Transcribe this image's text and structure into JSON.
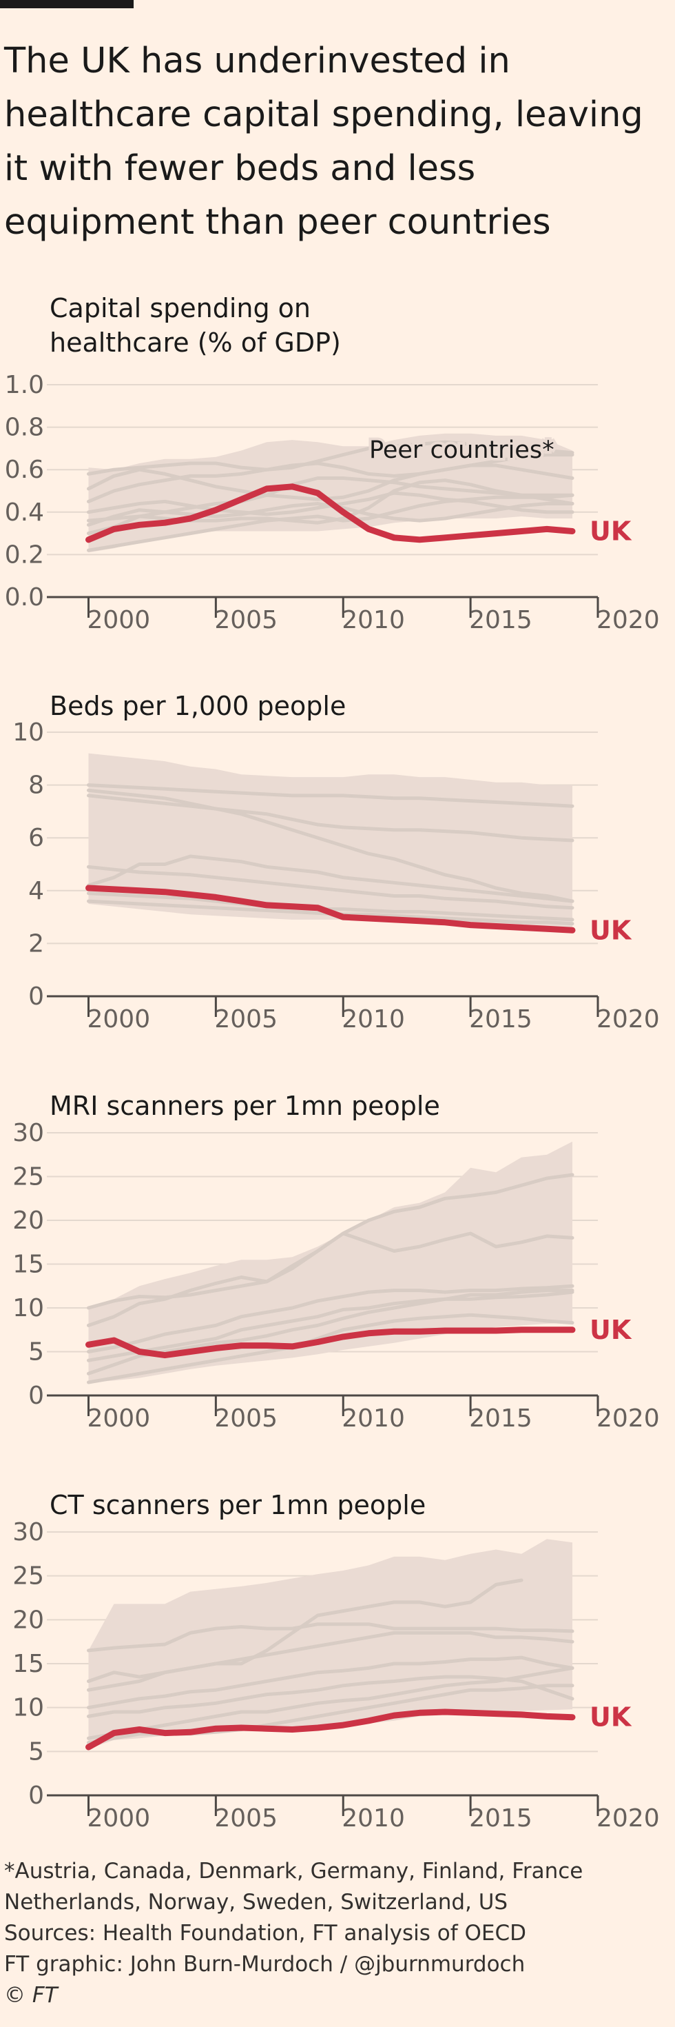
{
  "headline": "The UK has underinvested in healthcare capital spending, leaving it with fewer beds and less equipment than peer countries",
  "colors": {
    "background": "#fff1e5",
    "uk": "#cc3345",
    "peer_line": "#d8ccc4",
    "peer_band": "#eadbd3",
    "axis": "#4d4845"
  },
  "chart_data": [
    {
      "type": "line",
      "title": "Capital spending on\nhealthcare (% of GDP)",
      "yticks": [
        "0.0",
        "0.2",
        "0.4",
        "0.6",
        "0.8",
        "1.0"
      ],
      "ylim": [
        0,
        1.0
      ],
      "xticks": [
        "2000",
        "2005",
        "2010",
        "2015",
        "2020"
      ],
      "xlim": [
        1999.5,
        2020
      ],
      "annotation": "Peer countries*",
      "uk_label": "UK",
      "x": [
        2000,
        2001,
        2002,
        2003,
        2004,
        2005,
        2006,
        2007,
        2008,
        2009,
        2010,
        2011,
        2012,
        2013,
        2014,
        2015,
        2016,
        2017,
        2018,
        2019
      ],
      "band_upper": [
        0.61,
        0.6,
        0.63,
        0.65,
        0.65,
        0.66,
        0.69,
        0.73,
        0.74,
        0.73,
        0.71,
        0.71,
        0.74,
        0.76,
        0.77,
        0.77,
        0.76,
        0.76,
        0.74,
        0.69
      ],
      "band_lower": [
        0.21,
        0.23,
        0.26,
        0.28,
        0.3,
        0.31,
        0.31,
        0.31,
        0.31,
        0.31,
        0.32,
        0.33,
        0.35,
        0.36,
        0.37,
        0.37,
        0.37,
        0.38,
        0.37,
        0.37
      ],
      "uk_values": [
        0.27,
        0.32,
        0.34,
        0.35,
        0.37,
        0.41,
        0.46,
        0.51,
        0.52,
        0.49,
        0.4,
        0.32,
        0.28,
        0.27,
        0.28,
        0.29,
        0.3,
        0.31,
        0.32,
        0.31
      ],
      "peers": [
        [
          0.51,
          0.57,
          0.6,
          0.58,
          0.55,
          0.52,
          0.5,
          0.48,
          0.47,
          0.46,
          0.47,
          0.5,
          0.55,
          0.58,
          0.6,
          0.62,
          0.64,
          0.66,
          0.67,
          0.67
        ],
        [
          0.58,
          0.6,
          0.61,
          0.62,
          0.63,
          0.63,
          0.61,
          0.6,
          0.61,
          0.64,
          0.67,
          0.7,
          0.71,
          0.72,
          0.73,
          0.72,
          0.71,
          0.7,
          0.69,
          0.68
        ],
        [
          0.45,
          0.5,
          0.53,
          0.55,
          0.57,
          0.57,
          0.58,
          0.6,
          0.62,
          0.63,
          0.61,
          0.58,
          0.57,
          0.58,
          0.6,
          0.62,
          0.62,
          0.6,
          0.58,
          0.56
        ],
        [
          0.3,
          0.33,
          0.38,
          0.4,
          0.42,
          0.44,
          0.45,
          0.48,
          0.53,
          0.56,
          0.56,
          0.55,
          0.54,
          0.52,
          0.51,
          0.5,
          0.49,
          0.48,
          0.48,
          0.48
        ],
        [
          0.4,
          0.42,
          0.44,
          0.45,
          0.43,
          0.41,
          0.4,
          0.39,
          0.4,
          0.42,
          0.44,
          0.46,
          0.49,
          0.48,
          0.46,
          0.45,
          0.43,
          0.41,
          0.4,
          0.4
        ],
        [
          0.34,
          0.38,
          0.41,
          0.4,
          0.39,
          0.38,
          0.39,
          0.41,
          0.43,
          0.44,
          0.42,
          0.39,
          0.37,
          0.36,
          0.37,
          0.39,
          0.41,
          0.43,
          0.44,
          0.44
        ],
        [
          0.22,
          0.24,
          0.26,
          0.28,
          0.3,
          0.32,
          0.34,
          0.36,
          0.37,
          0.38,
          0.36,
          0.37,
          0.4,
          0.43,
          0.45,
          0.46,
          0.47,
          0.47,
          0.47,
          0.48
        ],
        [
          0.36,
          0.37,
          0.38,
          0.37,
          0.36,
          0.36,
          0.37,
          0.37,
          0.36,
          0.35,
          0.37,
          0.42,
          0.5,
          0.54,
          0.55,
          0.53,
          0.5,
          0.48,
          0.46,
          0.44
        ]
      ]
    },
    {
      "type": "line",
      "title": "Beds per 1,000 people",
      "yticks": [
        "0",
        "2",
        "4",
        "6",
        "8",
        "10"
      ],
      "ylim": [
        0,
        10
      ],
      "xticks": [
        "2000",
        "2005",
        "2010",
        "2015",
        "2020"
      ],
      "xlim": [
        1999.5,
        2020
      ],
      "uk_label": "UK",
      "x": [
        2000,
        2001,
        2002,
        2003,
        2004,
        2005,
        2006,
        2007,
        2008,
        2009,
        2010,
        2011,
        2012,
        2013,
        2014,
        2015,
        2016,
        2017,
        2018,
        2019
      ],
      "band_upper": [
        9.2,
        9.1,
        9.0,
        8.9,
        8.7,
        8.6,
        8.4,
        8.35,
        8.3,
        8.3,
        8.3,
        8.4,
        8.4,
        8.3,
        8.3,
        8.2,
        8.1,
        8.1,
        8.0,
        8.0
      ],
      "band_lower": [
        3.5,
        3.4,
        3.3,
        3.2,
        3.1,
        3.05,
        3.0,
        2.95,
        2.9,
        2.9,
        2.9,
        2.85,
        2.85,
        2.8,
        2.8,
        2.75,
        2.7,
        2.65,
        2.6,
        2.55
      ],
      "uk_values": [
        4.1,
        4.05,
        4.0,
        3.95,
        3.85,
        3.75,
        3.6,
        3.45,
        3.4,
        3.35,
        3.0,
        2.95,
        2.9,
        2.85,
        2.8,
        2.7,
        2.65,
        2.6,
        2.55,
        2.5
      ],
      "peers": [
        [
          8.0,
          7.95,
          7.9,
          7.85,
          7.8,
          7.75,
          7.7,
          7.65,
          7.6,
          7.6,
          7.6,
          7.55,
          7.5,
          7.5,
          7.45,
          7.4,
          7.35,
          7.3,
          7.25,
          7.2
        ],
        [
          7.6,
          7.5,
          7.4,
          7.3,
          7.2,
          7.1,
          7.0,
          6.9,
          6.7,
          6.5,
          6.4,
          6.35,
          6.3,
          6.3,
          6.25,
          6.2,
          6.1,
          6.0,
          5.95,
          5.9
        ],
        [
          7.8,
          7.7,
          7.6,
          7.5,
          7.3,
          7.1,
          6.9,
          6.6,
          6.3,
          6.0,
          5.7,
          5.4,
          5.2,
          4.9,
          4.6,
          4.4,
          4.1,
          3.9,
          3.8,
          3.6
        ],
        [
          4.9,
          4.8,
          4.7,
          4.65,
          4.6,
          4.5,
          4.4,
          4.3,
          4.2,
          4.1,
          4.0,
          3.9,
          3.8,
          3.8,
          3.7,
          3.65,
          3.6,
          3.5,
          3.4,
          3.35
        ],
        [
          4.2,
          4.5,
          5.0,
          5.0,
          5.3,
          5.2,
          5.1,
          4.9,
          4.8,
          4.7,
          4.5,
          4.4,
          4.3,
          4.2,
          4.1,
          4.0,
          3.9,
          3.8,
          3.7,
          3.6
        ],
        [
          3.6,
          3.55,
          3.5,
          3.45,
          3.4,
          3.35,
          3.3,
          3.25,
          3.2,
          3.15,
          3.1,
          3.1,
          3.05,
          3.0,
          2.95,
          2.9,
          2.85,
          2.8,
          2.8,
          2.75
        ],
        [
          3.9,
          3.85,
          3.8,
          3.75,
          3.7,
          3.6,
          3.5,
          3.4,
          3.35,
          3.3,
          3.3,
          3.25,
          3.2,
          3.2,
          3.15,
          3.1,
          3.05,
          3.0,
          2.95,
          2.9
        ]
      ]
    },
    {
      "type": "line",
      "title": "MRI scanners per 1mn people",
      "yticks": [
        "0",
        "5",
        "10",
        "15",
        "20",
        "25",
        "30"
      ],
      "ylim": [
        0,
        30
      ],
      "xticks": [
        "2000",
        "2005",
        "2010",
        "2015",
        "2020"
      ],
      "xlim": [
        1999.5,
        2020
      ],
      "uk_label": "UK",
      "x": [
        2000,
        2001,
        2002,
        2003,
        2004,
        2005,
        2006,
        2007,
        2008,
        2009,
        2010,
        2011,
        2012,
        2013,
        2014,
        2015,
        2016,
        2017,
        2018,
        2019
      ],
      "band_upper": [
        10.0,
        11.0,
        12.5,
        13.3,
        14.0,
        14.8,
        15.5,
        15.5,
        15.8,
        17.0,
        18.5,
        20.0,
        21.5,
        22.0,
        23.2,
        26.0,
        25.5,
        27.2,
        27.5,
        29.0
      ],
      "band_lower": [
        1.5,
        1.7,
        2.0,
        2.5,
        3.0,
        3.4,
        3.7,
        4.0,
        4.3,
        4.7,
        5.2,
        5.6,
        6.0,
        6.5,
        7.0,
        7.5,
        7.8,
        8.0,
        8.2,
        8.3
      ],
      "uk_values": [
        5.8,
        6.3,
        5.0,
        4.6,
        5.0,
        5.4,
        5.7,
        5.7,
        5.6,
        6.1,
        6.7,
        7.1,
        7.3,
        7.3,
        7.4,
        7.4,
        7.4,
        7.5,
        7.5,
        7.5
      ],
      "peers": [
        [
          10.0,
          10.8,
          11.3,
          11.2,
          11.5,
          12.0,
          12.5,
          13.0,
          14.5,
          16.5,
          18.5,
          20.0,
          21.0,
          21.5,
          22.5,
          22.8,
          23.2,
          24.0,
          24.8,
          25.2
        ],
        [
          8.0,
          9.0,
          10.5,
          11.0,
          12.0,
          12.8,
          13.5,
          13.0,
          14.8,
          16.5,
          18.5,
          17.5,
          16.5,
          17.0,
          17.8,
          18.5,
          17.0,
          17.5,
          18.2,
          18.0
        ],
        [
          5.0,
          5.5,
          6.2,
          7.0,
          7.5,
          8.0,
          9.0,
          9.5,
          10.0,
          10.8,
          11.3,
          11.8,
          12.0,
          12.0,
          11.8,
          12.0,
          12.0,
          12.2,
          12.3,
          12.5
        ],
        [
          4.0,
          4.5,
          5.0,
          5.5,
          6.0,
          6.5,
          7.5,
          8.0,
          8.5,
          9.0,
          9.8,
          10.0,
          10.5,
          10.8,
          11.0,
          11.0,
          11.2,
          11.3,
          11.5,
          11.8
        ],
        [
          2.5,
          3.5,
          4.5,
          5.0,
          5.5,
          6.0,
          6.3,
          6.8,
          7.5,
          8.0,
          8.8,
          9.5,
          10.0,
          10.5,
          11.0,
          11.5,
          11.5,
          11.8,
          12.0,
          12.0
        ],
        [
          1.5,
          2.0,
          2.5,
          3.0,
          3.5,
          4.0,
          4.5,
          5.0,
          5.5,
          6.5,
          7.5,
          8.0,
          8.5,
          8.8,
          9.0,
          9.2,
          9.0,
          8.8,
          8.5,
          8.3
        ]
      ]
    },
    {
      "type": "line",
      "title": "CT scanners per 1mn people",
      "yticks": [
        "0",
        "5",
        "10",
        "15",
        "20",
        "25",
        "30"
      ],
      "ylim": [
        0,
        30
      ],
      "xticks": [
        "2000",
        "2005",
        "2010",
        "2015",
        "2020"
      ],
      "xlim": [
        1999.5,
        2020
      ],
      "uk_label": "UK",
      "x": [
        2000,
        2001,
        2002,
        2003,
        2004,
        2005,
        2006,
        2007,
        2008,
        2009,
        2010,
        2011,
        2012,
        2013,
        2014,
        2015,
        2016,
        2017,
        2018,
        2019
      ],
      "band_upper": [
        16.5,
        21.8,
        21.8,
        21.8,
        23.2,
        23.5,
        23.8,
        24.2,
        24.7,
        25.2,
        25.6,
        26.2,
        27.2,
        27.2,
        26.8,
        27.5,
        28.0,
        27.5,
        29.2,
        28.8
      ],
      "band_lower": [
        5.3,
        6.3,
        6.5,
        6.8,
        7.0,
        7.2,
        7.4,
        7.5,
        7.6,
        7.8,
        8.0,
        8.2,
        8.5,
        9.0,
        9.2,
        9.4,
        9.5,
        9.6,
        9.7,
        9.8
      ],
      "uk_values": [
        5.5,
        7.1,
        7.5,
        7.1,
        7.2,
        7.6,
        7.7,
        7.6,
        7.5,
        7.7,
        8.0,
        8.5,
        9.1,
        9.4,
        9.5,
        9.4,
        9.3,
        9.2,
        9.0,
        8.9
      ],
      "peers": [
        [
          16.5,
          16.8,
          17.0,
          17.2,
          18.5,
          19.0,
          19.2,
          19.0,
          19.0,
          19.5,
          19.5,
          19.5,
          19.0,
          19.0,
          19.0,
          19.0,
          19.0,
          18.8,
          18.8,
          18.7
        ],
        [
          13.0,
          14.0,
          13.5,
          14.0,
          14.5,
          15.0,
          15.5,
          16.0,
          16.5,
          17.0,
          17.5,
          18.0,
          18.5,
          18.5,
          18.5,
          18.5,
          18.0,
          18.0,
          17.8,
          17.5
        ],
        [
          12.0,
          12.5,
          13.0,
          14.0,
          14.5,
          15.0,
          15.0,
          16.5,
          18.5,
          20.5,
          21.0,
          21.5,
          22.0,
          22.0,
          21.5,
          22.0,
          24.0,
          24.5,
          null,
          null
        ],
        [
          10.0,
          10.5,
          11.0,
          11.3,
          11.8,
          12.0,
          12.5,
          13.0,
          13.5,
          14.0,
          14.2,
          14.5,
          15.0,
          15.0,
          15.2,
          15.5,
          15.5,
          15.7,
          15.0,
          14.5
        ],
        [
          9.0,
          9.5,
          9.5,
          10.0,
          10.2,
          10.5,
          11.0,
          11.5,
          11.7,
          12.0,
          12.5,
          12.8,
          13.0,
          13.3,
          13.5,
          13.5,
          13.3,
          13.0,
          12.0,
          11.0
        ],
        [
          6.5,
          7.0,
          7.5,
          8.0,
          8.5,
          9.0,
          9.5,
          9.5,
          10.0,
          10.5,
          10.8,
          11.0,
          11.5,
          12.0,
          12.5,
          12.8,
          13.0,
          13.5,
          14.0,
          14.5
        ],
        [
          6.0,
          6.5,
          7.0,
          7.0,
          7.0,
          7.2,
          7.5,
          8.0,
          8.5,
          9.0,
          9.5,
          10.0,
          10.5,
          11.0,
          11.5,
          12.0,
          12.0,
          12.2,
          12.5,
          12.5
        ]
      ]
    }
  ],
  "footer": {
    "note_line1": "*Austria, Canada, Denmark, Germany, Finland, France",
    "note_line2": "Netherlands, Norway, Sweden, Switzerland, US",
    "sources": "Sources: Health Foundation, FT analysis of OECD",
    "credit": "FT graphic: John Burn-Murdoch / @jburnmurdoch",
    "copyright": "© FT"
  }
}
